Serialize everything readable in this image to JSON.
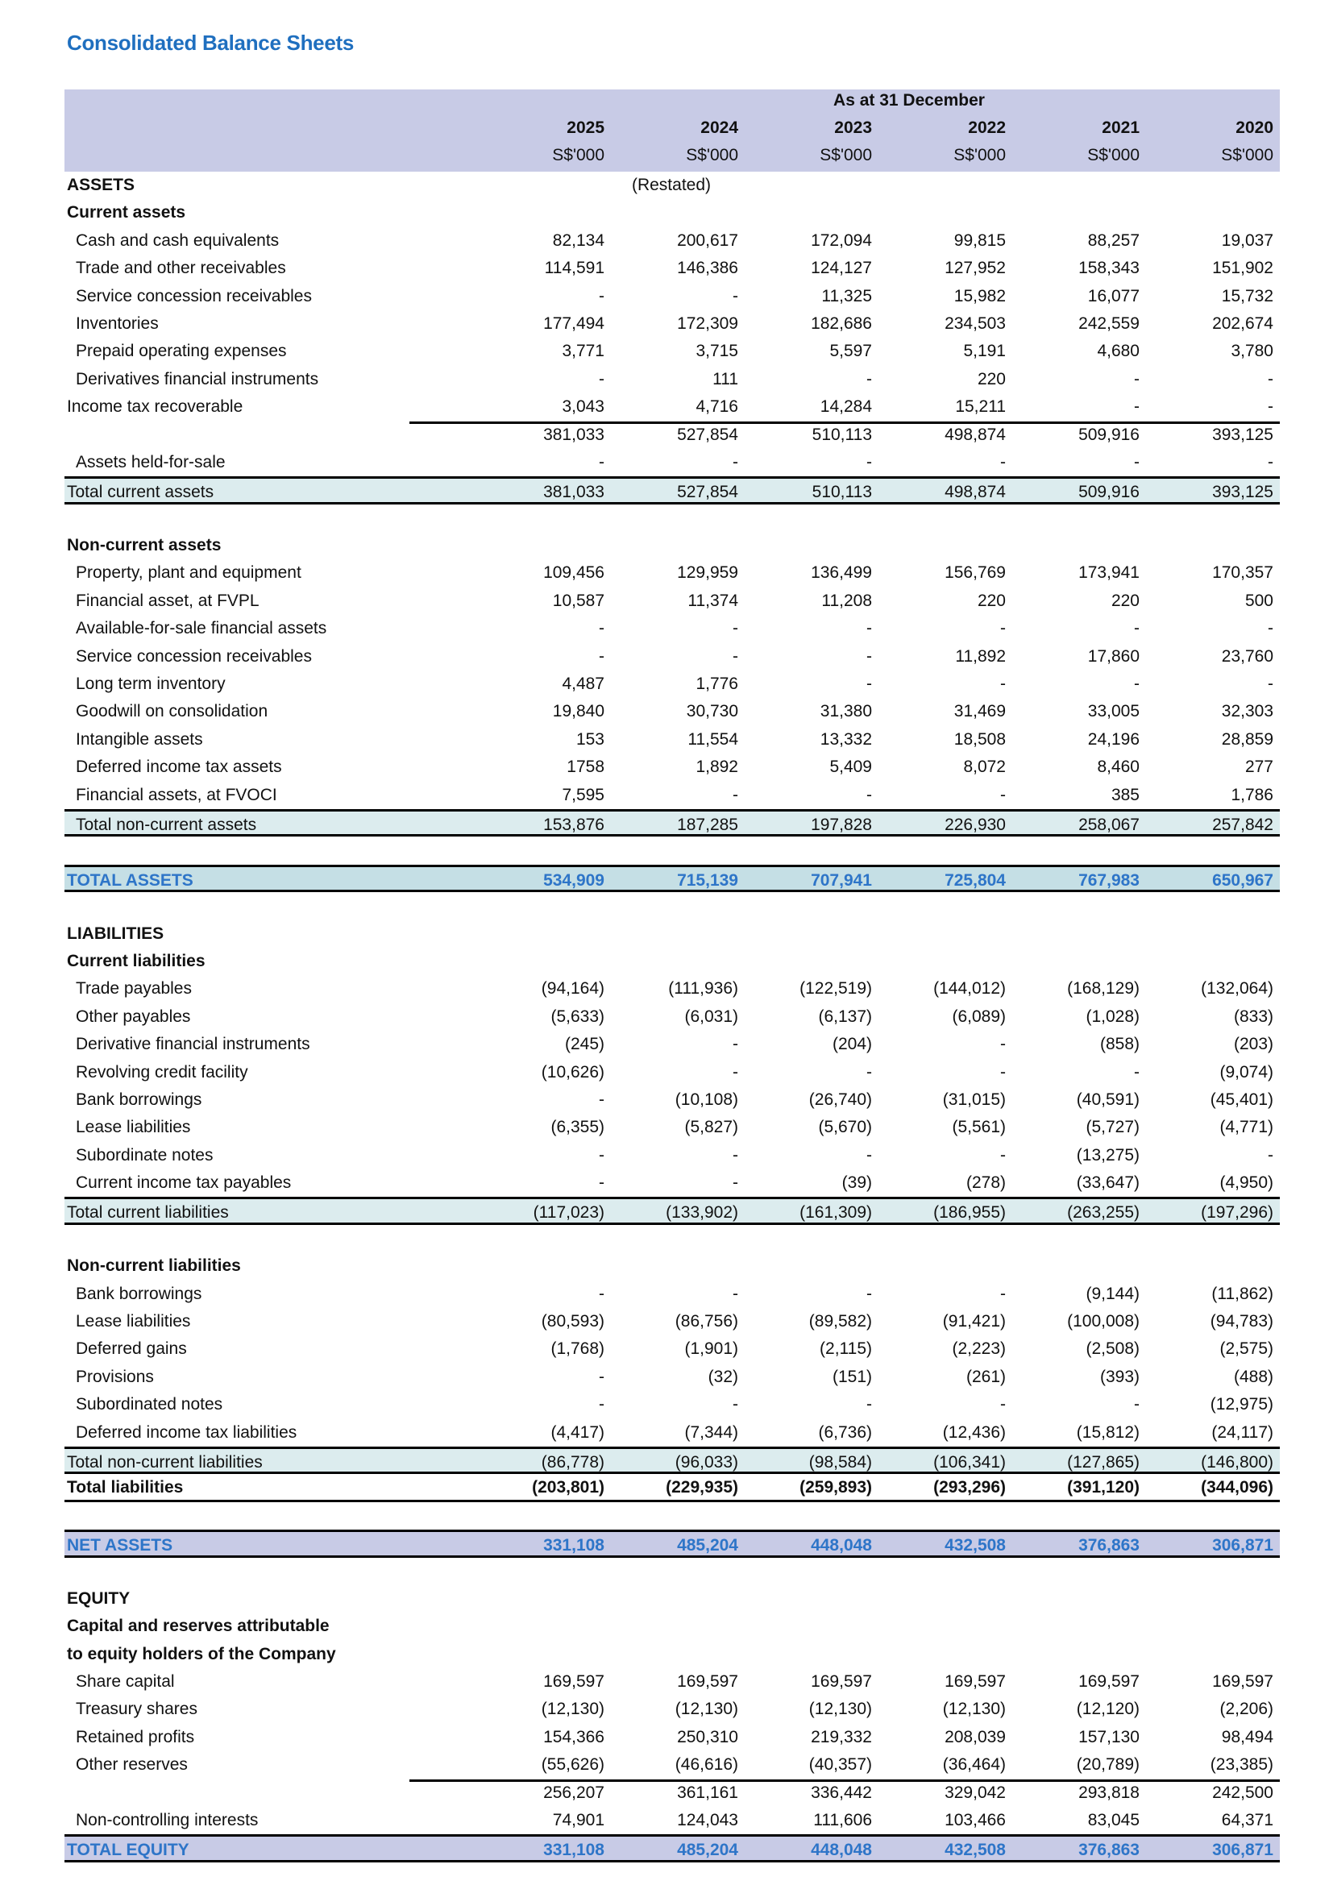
{
  "title": "Consolidated Balance Sheets",
  "header": {
    "period_label": "As at 31 December",
    "years": [
      "2025",
      "2024",
      "2023",
      "2022",
      "2021",
      "2020"
    ],
    "units": [
      "S$'000",
      "S$'000",
      "S$'000",
      "S$'000",
      "S$'000",
      "S$'000"
    ]
  },
  "colors": {
    "accent": "#1f6fbf",
    "total_text": "#2e75c8",
    "header_band": "#c8cbe6",
    "subtotal_bg": "#dcecee",
    "total_assets_bg": "#c5dfe5"
  },
  "rows": [
    {
      "type": "section",
      "label": "ASSETS",
      "values": [
        "",
        "(Restated)",
        "",
        "",
        "",
        ""
      ]
    },
    {
      "type": "heading",
      "label": "Current assets",
      "values": [
        "",
        "",
        "",
        "",
        "",
        ""
      ]
    },
    {
      "type": "item",
      "label": "Cash and cash equivalents",
      "values": [
        "82,134",
        "200,617",
        "172,094",
        "99,815",
        "88,257",
        "19,037"
      ]
    },
    {
      "type": "item",
      "label": "Trade and other receivables",
      "values": [
        "114,591",
        "146,386",
        "124,127",
        "127,952",
        "158,343",
        "151,902"
      ]
    },
    {
      "type": "item",
      "label": "Service concession receivables",
      "values": [
        "-",
        "-",
        "11,325",
        "15,982",
        "16,077",
        "15,732"
      ]
    },
    {
      "type": "item",
      "label": "Inventories",
      "values": [
        "177,494",
        "172,309",
        "182,686",
        "234,503",
        "242,559",
        "202,674"
      ]
    },
    {
      "type": "item",
      "label": "Prepaid operating expenses",
      "values": [
        "3,771",
        "3,715",
        "5,597",
        "5,191",
        "4,680",
        "3,780"
      ]
    },
    {
      "type": "item",
      "label": "Derivatives financial instruments",
      "values": [
        "-",
        "111",
        "-",
        "220",
        "-",
        "-"
      ]
    },
    {
      "type": "item_flush",
      "label": "Income tax recoverable",
      "values": [
        "3,043",
        "4,716",
        "14,284",
        "15,211",
        "-",
        "-"
      ]
    },
    {
      "type": "sum",
      "label": "",
      "values": [
        "381,033",
        "527,854",
        "510,113",
        "498,874",
        "509,916",
        "393,125"
      ]
    },
    {
      "type": "item",
      "label": "Assets held-for-sale",
      "values": [
        "-",
        "-",
        "-",
        "-",
        "-",
        "-"
      ]
    },
    {
      "type": "subtotal",
      "label": "Total current assets",
      "values": [
        "381,033",
        "527,854",
        "510,113",
        "498,874",
        "509,916",
        "393,125"
      ]
    },
    {
      "type": "blank"
    },
    {
      "type": "heading",
      "label": "Non-current assets",
      "values": [
        "",
        "",
        "",
        "",
        "",
        ""
      ]
    },
    {
      "type": "item",
      "label": "Property, plant and equipment",
      "values": [
        "109,456",
        "129,959",
        "136,499",
        "156,769",
        "173,941",
        "170,357"
      ]
    },
    {
      "type": "item",
      "label": "Financial asset, at FVPL",
      "values": [
        "10,587",
        "11,374",
        "11,208",
        "220",
        "220",
        "500"
      ]
    },
    {
      "type": "item",
      "label": "Available-for-sale financial assets",
      "values": [
        "-",
        "-",
        "-",
        "-",
        "-",
        "-"
      ]
    },
    {
      "type": "item",
      "label": "Service concession receivables",
      "values": [
        "-",
        "-",
        "-",
        "11,892",
        "17,860",
        "23,760"
      ]
    },
    {
      "type": "item",
      "label": "Long term inventory",
      "values": [
        "4,487",
        "1,776",
        "-",
        "-",
        "-",
        "-"
      ]
    },
    {
      "type": "item",
      "label": "Goodwill on consolidation",
      "values": [
        "19,840",
        "30,730",
        "31,380",
        "31,469",
        "33,005",
        "32,303"
      ]
    },
    {
      "type": "item",
      "label": "Intangible assets",
      "values": [
        "153",
        "11,554",
        "13,332",
        "18,508",
        "24,196",
        "28,859"
      ]
    },
    {
      "type": "item",
      "label": "Deferred income tax assets",
      "values": [
        "1758",
        "1,892",
        "5,409",
        "8,072",
        "8,460",
        "277"
      ]
    },
    {
      "type": "item",
      "label": "Financial assets, at FVOCI",
      "values": [
        "7,595",
        "-",
        "-",
        "-",
        "385",
        "1,786"
      ]
    },
    {
      "type": "subtotal_ind",
      "label": "Total non-current assets",
      "values": [
        "153,876",
        "187,285",
        "197,828",
        "226,930",
        "258,067",
        "257,842"
      ]
    },
    {
      "type": "blank"
    },
    {
      "type": "grand",
      "label": "TOTAL ASSETS",
      "values": [
        "534,909",
        "715,139",
        "707,941",
        "725,804",
        "767,983",
        "650,967"
      ]
    },
    {
      "type": "blank"
    },
    {
      "type": "section",
      "label": "LIABILITIES",
      "values": [
        "",
        "",
        "",
        "",
        "",
        ""
      ]
    },
    {
      "type": "heading",
      "label": "Current liabilities",
      "values": [
        "",
        "",
        "",
        "",
        "",
        ""
      ]
    },
    {
      "type": "item",
      "label": "Trade payables",
      "values": [
        "(94,164)",
        "(111,936)",
        "(122,519)",
        "(144,012)",
        "(168,129)",
        "(132,064)"
      ]
    },
    {
      "type": "item",
      "label": "Other payables",
      "values": [
        "(5,633)",
        "(6,031)",
        "(6,137)",
        "(6,089)",
        "(1,028)",
        "(833)"
      ]
    },
    {
      "type": "item",
      "label": "Derivative financial instruments",
      "values": [
        "(245)",
        "-",
        "(204)",
        "-",
        "(858)",
        "(203)"
      ]
    },
    {
      "type": "item",
      "label": "Revolving credit facility",
      "values": [
        "(10,626)",
        "-",
        "-",
        "-",
        "-",
        "(9,074)"
      ]
    },
    {
      "type": "item",
      "label": "Bank borrowings",
      "values": [
        "-",
        "(10,108)",
        "(26,740)",
        "(31,015)",
        "(40,591)",
        "(45,401)"
      ]
    },
    {
      "type": "item",
      "label": "Lease liabilities",
      "values": [
        "(6,355)",
        "(5,827)",
        "(5,670)",
        "(5,561)",
        "(5,727)",
        "(4,771)"
      ]
    },
    {
      "type": "item",
      "label": "Subordinate notes",
      "values": [
        "-",
        "-",
        "-",
        "-",
        "(13,275)",
        "-"
      ]
    },
    {
      "type": "item",
      "label": "Current income tax payables",
      "values": [
        "-",
        "-",
        "(39)",
        "(278)",
        "(33,647)",
        "(4,950)"
      ]
    },
    {
      "type": "subtotal",
      "label": "Total current liabilities",
      "values": [
        "(117,023)",
        "(133,902)",
        "(161,309)",
        "(186,955)",
        "(263,255)",
        "(197,296)"
      ]
    },
    {
      "type": "blank"
    },
    {
      "type": "heading",
      "label": "Non-current liabilities",
      "values": [
        "",
        "",
        "",
        "",
        "",
        ""
      ]
    },
    {
      "type": "item",
      "label": "Bank borrowings",
      "values": [
        "-",
        "-",
        "-",
        "-",
        "(9,144)",
        "(11,862)"
      ]
    },
    {
      "type": "item",
      "label": "Lease liabilities",
      "values": [
        "(80,593)",
        "(86,756)",
        "(89,582)",
        "(91,421)",
        "(100,008)",
        "(94,783)"
      ]
    },
    {
      "type": "item",
      "label": "Deferred gains",
      "values": [
        "(1,768)",
        "(1,901)",
        "(2,115)",
        "(2,223)",
        "(2,508)",
        "(2,575)"
      ]
    },
    {
      "type": "item",
      "label": "Provisions",
      "values": [
        "-",
        "(32)",
        "(151)",
        "(261)",
        "(393)",
        "(488)"
      ]
    },
    {
      "type": "item",
      "label": "Subordinated notes",
      "values": [
        "-",
        "-",
        "-",
        "-",
        "-",
        "(12,975)"
      ]
    },
    {
      "type": "item",
      "label": "Deferred income tax liabilities",
      "values": [
        "(4,417)",
        "(7,344)",
        "(6,736)",
        "(12,436)",
        "(15,812)",
        "(24,117)"
      ]
    },
    {
      "type": "subtotal",
      "label": "Total non-current liabilities",
      "values": [
        "(86,778)",
        "(96,033)",
        "(98,584)",
        "(106,341)",
        "(127,865)",
        "(146,800)"
      ]
    },
    {
      "type": "totalbold",
      "label": "Total liabilities",
      "values": [
        "(203,801)",
        "(229,935)",
        "(259,893)",
        "(293,296)",
        "(391,120)",
        "(344,096)"
      ]
    },
    {
      "type": "blank"
    },
    {
      "type": "grand2",
      "label": "NET ASSETS",
      "values": [
        "331,108",
        "485,204",
        "448,048",
        "432,508",
        "376,863",
        "306,871"
      ]
    },
    {
      "type": "blank"
    },
    {
      "type": "section",
      "label": "EQUITY",
      "values": [
        "",
        "",
        "",
        "",
        "",
        ""
      ]
    },
    {
      "type": "heading",
      "label": "Capital and reserves  attributable",
      "values": [
        "",
        "",
        "",
        "",
        "",
        ""
      ]
    },
    {
      "type": "heading",
      "label": "to equity holders of the Company",
      "values": [
        "",
        "",
        "",
        "",
        "",
        ""
      ]
    },
    {
      "type": "item",
      "label": "Share capital",
      "values": [
        "169,597",
        "169,597",
        "169,597",
        "169,597",
        "169,597",
        "169,597"
      ]
    },
    {
      "type": "item",
      "label": "Treasury shares",
      "values": [
        "(12,130)",
        "(12,130)",
        "(12,130)",
        "(12,130)",
        "(12,120)",
        "(2,206)"
      ]
    },
    {
      "type": "item",
      "label": "Retained profits",
      "values": [
        "154,366",
        "250,310",
        "219,332",
        "208,039",
        "157,130",
        "98,494"
      ]
    },
    {
      "type": "item",
      "label": "Other reserves",
      "values": [
        "(55,626)",
        "(46,616)",
        "(40,357)",
        "(36,464)",
        "(20,789)",
        "(23,385)"
      ]
    },
    {
      "type": "sum",
      "label": "",
      "values": [
        "256,207",
        "361,161",
        "336,442",
        "329,042",
        "293,818",
        "242,500"
      ]
    },
    {
      "type": "item",
      "label": "Non-controlling interests",
      "values": [
        "74,901",
        "124,043",
        "111,606",
        "103,466",
        "83,045",
        "64,371"
      ]
    },
    {
      "type": "grand2",
      "label": "TOTAL EQUITY",
      "values": [
        "331,108",
        "485,204",
        "448,048",
        "432,508",
        "376,863",
        "306,871"
      ]
    }
  ]
}
